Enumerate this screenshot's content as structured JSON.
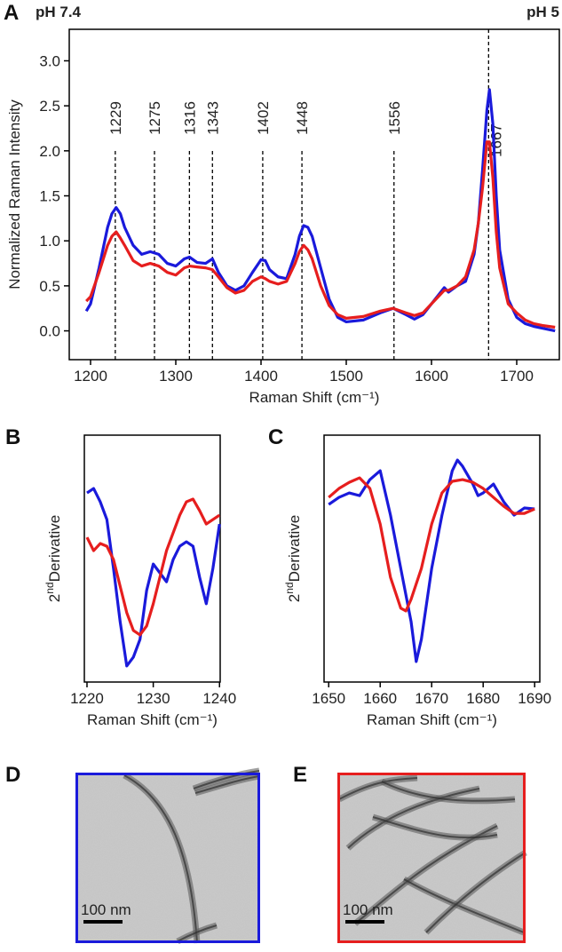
{
  "chart_data": [
    {
      "type": "line",
      "panel": "A",
      "xlabel": "Raman Shift (cm⁻¹)",
      "ylabel": "Normalized Raman Intensity",
      "xlim": [
        1175,
        1750
      ],
      "ylim": [
        -0.32,
        3.35
      ],
      "xticks": [
        1200,
        1300,
        1400,
        1500,
        1600,
        1700
      ],
      "yticks": [
        {
          "value": 0,
          "label": "0.0"
        },
        0.5,
        {
          "value": 1,
          "label": "1.0"
        },
        1.5,
        {
          "value": 2,
          "label": "2.0"
        },
        2.5,
        {
          "value": 3,
          "label": "3.0"
        }
      ],
      "peaks": [
        1229,
        1275,
        1316,
        1343,
        1402,
        1448,
        1556,
        1667
      ],
      "x": [
        1195,
        1200,
        1210,
        1220,
        1225,
        1230,
        1235,
        1240,
        1250,
        1260,
        1270,
        1280,
        1290,
        1300,
        1310,
        1316,
        1325,
        1335,
        1343,
        1350,
        1360,
        1370,
        1380,
        1390,
        1400,
        1405,
        1410,
        1420,
        1430,
        1440,
        1445,
        1450,
        1455,
        1460,
        1470,
        1480,
        1490,
        1500,
        1520,
        1540,
        1555,
        1570,
        1580,
        1590,
        1600,
        1610,
        1615,
        1620,
        1630,
        1640,
        1650,
        1655,
        1660,
        1665,
        1668,
        1672,
        1676,
        1680,
        1690,
        1700,
        1710,
        1720,
        1730,
        1745
      ],
      "series": [
        {
          "name": "pH 7.4",
          "color": "#1a1adb",
          "values": [
            0.22,
            0.3,
            0.7,
            1.15,
            1.3,
            1.37,
            1.3,
            1.15,
            0.95,
            0.85,
            0.88,
            0.85,
            0.75,
            0.72,
            0.8,
            0.82,
            0.76,
            0.75,
            0.8,
            0.65,
            0.5,
            0.45,
            0.5,
            0.65,
            0.79,
            0.78,
            0.68,
            0.6,
            0.58,
            0.85,
            1.05,
            1.17,
            1.15,
            1.05,
            0.7,
            0.35,
            0.15,
            0.1,
            0.12,
            0.2,
            0.25,
            0.18,
            0.13,
            0.18,
            0.3,
            0.42,
            0.48,
            0.43,
            0.5,
            0.55,
            0.85,
            1.2,
            1.8,
            2.45,
            2.68,
            2.3,
            1.5,
            0.9,
            0.35,
            0.15,
            0.08,
            0.05,
            0.03,
            0.0
          ]
        },
        {
          "name": "pH 5",
          "color": "#e61e1e",
          "values": [
            0.33,
            0.38,
            0.65,
            0.95,
            1.05,
            1.1,
            1.03,
            0.95,
            0.78,
            0.72,
            0.75,
            0.72,
            0.65,
            0.62,
            0.7,
            0.72,
            0.71,
            0.7,
            0.68,
            0.6,
            0.48,
            0.42,
            0.45,
            0.55,
            0.6,
            0.58,
            0.55,
            0.52,
            0.55,
            0.75,
            0.88,
            0.95,
            0.9,
            0.8,
            0.5,
            0.28,
            0.18,
            0.14,
            0.16,
            0.22,
            0.25,
            0.2,
            0.17,
            0.2,
            0.3,
            0.4,
            0.45,
            0.45,
            0.5,
            0.6,
            0.9,
            1.2,
            1.6,
            2.1,
            2.1,
            1.7,
            1.1,
            0.7,
            0.3,
            0.2,
            0.12,
            0.08,
            0.06,
            0.04
          ]
        }
      ]
    },
    {
      "type": "line",
      "panel": "B",
      "xlabel": "Raman Shift (cm⁻¹)",
      "ylabel": [
        "2",
        "nd",
        "Derivative"
      ],
      "xlim": [
        1219.6,
        1240.1
      ],
      "ylim": [
        0,
        10
      ],
      "xticks": [
        1220,
        1230,
        1240
      ],
      "series": [
        {
          "name": "pH 7.4",
          "color": "#1a1adb",
          "x": [
            1220,
            1221,
            1222,
            1223,
            1224,
            1225,
            1226,
            1227,
            1228,
            1229,
            1230,
            1231,
            1232,
            1233,
            1234,
            1235,
            1236,
            1237,
            1238,
            1239,
            1240
          ],
          "values": [
            7.66,
            7.84,
            7.3,
            6.58,
            4.6,
            2.45,
            0.65,
            1.01,
            1.73,
            3.71,
            4.78,
            4.42,
            4.06,
            4.96,
            5.5,
            5.68,
            5.5,
            4.24,
            3.17,
            4.6,
            6.4
          ]
        },
        {
          "name": "pH 5",
          "color": "#e61e1e",
          "x": [
            1220,
            1221,
            1222,
            1223,
            1224,
            1225,
            1226,
            1227,
            1228,
            1229,
            1230,
            1231,
            1232,
            1233,
            1234,
            1235,
            1236,
            1237,
            1238,
            1239,
            1240
          ],
          "values": [
            5.86,
            5.32,
            5.61,
            5.5,
            4.96,
            3.88,
            2.81,
            2.09,
            1.91,
            2.27,
            3.17,
            4.24,
            5.32,
            6.04,
            6.76,
            7.3,
            7.41,
            6.94,
            6.4,
            6.58,
            6.76
          ]
        }
      ]
    },
    {
      "type": "line",
      "panel": "C",
      "xlabel": "Raman Shift (cm⁻¹)",
      "ylabel": [
        "2",
        "nd",
        "Derivative"
      ],
      "xlim": [
        1649.1,
        1691
      ],
      "ylim": [
        0,
        10
      ],
      "xticks": [
        1650,
        1660,
        1670,
        1680,
        1690
      ],
      "series": [
        {
          "name": "pH 7.4",
          "color": "#1a1adb",
          "x": [
            1650,
            1652,
            1654,
            1656,
            1658,
            1660,
            1662,
            1664,
            1666,
            1667,
            1668,
            1670,
            1672,
            1674,
            1675,
            1676,
            1678,
            1679,
            1680,
            1682,
            1684,
            1686,
            1688,
            1690
          ],
          "values": [
            7.19,
            7.48,
            7.66,
            7.55,
            8.2,
            8.56,
            6.76,
            4.6,
            2.45,
            0.83,
            1.73,
            4.6,
            6.76,
            8.56,
            8.99,
            8.74,
            8.02,
            7.55,
            7.66,
            8.02,
            7.3,
            6.76,
            7.05,
            7.01
          ]
        },
        {
          "name": "pH 5",
          "color": "#e61e1e",
          "x": [
            1650,
            1652,
            1654,
            1656,
            1658,
            1660,
            1662,
            1664,
            1665,
            1666,
            1668,
            1670,
            1672,
            1674,
            1676,
            1678,
            1680,
            1682,
            1684,
            1686,
            1688,
            1690
          ],
          "values": [
            7.48,
            7.84,
            8.09,
            8.27,
            7.84,
            6.4,
            4.24,
            2.99,
            2.88,
            3.35,
            4.6,
            6.4,
            7.66,
            8.13,
            8.2,
            8.09,
            7.84,
            7.48,
            7.12,
            6.83,
            6.83,
            7.01
          ]
        }
      ]
    }
  ],
  "images": [
    {
      "panel": "D",
      "scale_bar": "100 nm",
      "border_color": "#1a1adb"
    },
    {
      "panel": "E",
      "scale_bar": "100 nm",
      "border_color": "#e61e1e"
    }
  ]
}
